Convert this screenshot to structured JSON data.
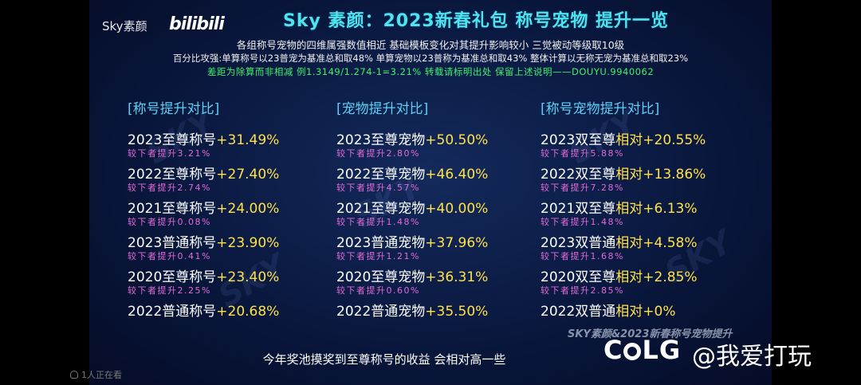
{
  "header": {
    "brand": "Sky",
    "brand_suffix": "素颜",
    "bili": "bilibili",
    "title": "Sky  素颜：2023新春礼包 称号宠物 提升一览"
  },
  "notes": {
    "line1": "各组称号宠物的四维属强数值相近 基础模板变化对其提升影响较小 三觉被动等级取10级",
    "line2": "百分比攻强:单算称号以23普宠为基准总和取48% 单算宠物以23普称为基准总和取43% 整体计算以无称无宠为基准总和取23%",
    "line3": "差距为除算而非相减  例1.3149/1.274-1=3.21%  转载请标明出处  保留上述说明——DOUYU.9940062"
  },
  "columns": [
    {
      "heading": "[称号提升对比]",
      "entries": [
        {
          "name": "2023至尊称号",
          "value": "+31.49%",
          "sub": "较下者提升3.21%"
        },
        {
          "name": "2022至尊称号",
          "value": "+27.40%",
          "sub": "较下者提升2.74%"
        },
        {
          "name": "2021至尊称号",
          "value": "+24.00%",
          "sub": "较下者提升0.08%"
        },
        {
          "name": "2023普通称号",
          "value": "+23.90%",
          "sub": "较下者提升0.41%"
        },
        {
          "name": "2020至尊称号",
          "value": "+23.40%",
          "sub": "较下者提升2.25%"
        },
        {
          "name": "2022普通称号",
          "value": "+20.68%",
          "sub": ""
        }
      ]
    },
    {
      "heading": "[宠物提升对比]",
      "entries": [
        {
          "name": "2023至尊宠物",
          "value": "+50.50%",
          "sub": "较下者提升2.80%"
        },
        {
          "name": "2022至尊宠物",
          "value": "+46.40%",
          "sub": "较下者提升4.57%"
        },
        {
          "name": "2021至尊宠物",
          "value": "+40.00%",
          "sub": "较下者提升1.48%"
        },
        {
          "name": "2023普通宠物",
          "value": "+37.96%",
          "sub": "较下者提升1.21%"
        },
        {
          "name": "2020至尊宠物",
          "value": "+36.31%",
          "sub": "较下者提升0.60%"
        },
        {
          "name": "2022普通宠物",
          "value": "+35.50%",
          "sub": ""
        }
      ]
    },
    {
      "heading": "[称号宠物提升对比]",
      "entries": [
        {
          "name": "2023双至尊",
          "value": "相对+20.55%",
          "sub": "较下者提升5.88%"
        },
        {
          "name": "2022双至尊",
          "value": "相对+13.86%",
          "sub": "较下者提升7.28%"
        },
        {
          "name": "2021双至尊",
          "value": "相对+6.13%",
          "sub": "较下者提升1.48%"
        },
        {
          "name": "2023双普通",
          "value": "相对+4.58%",
          "sub": "较下者提升1.68%"
        },
        {
          "name": "2020双至尊",
          "value": "相对+2.85%",
          "sub": "较下者提升2.85%"
        },
        {
          "name": "2022双普通",
          "value": "相对+0%",
          "sub": ""
        }
      ]
    }
  ],
  "footer": {
    "text": "今年奖池摸奖到至尊称号的收益 会相对高一些",
    "sky_logo": "SKY素颜&2023新春称号宠物提升"
  },
  "overlay": {
    "colg_c": "C",
    "colg_lg": "LG",
    "handle": "@我爱打玩",
    "viewers": "1人正在看"
  },
  "watermark": "SKY"
}
